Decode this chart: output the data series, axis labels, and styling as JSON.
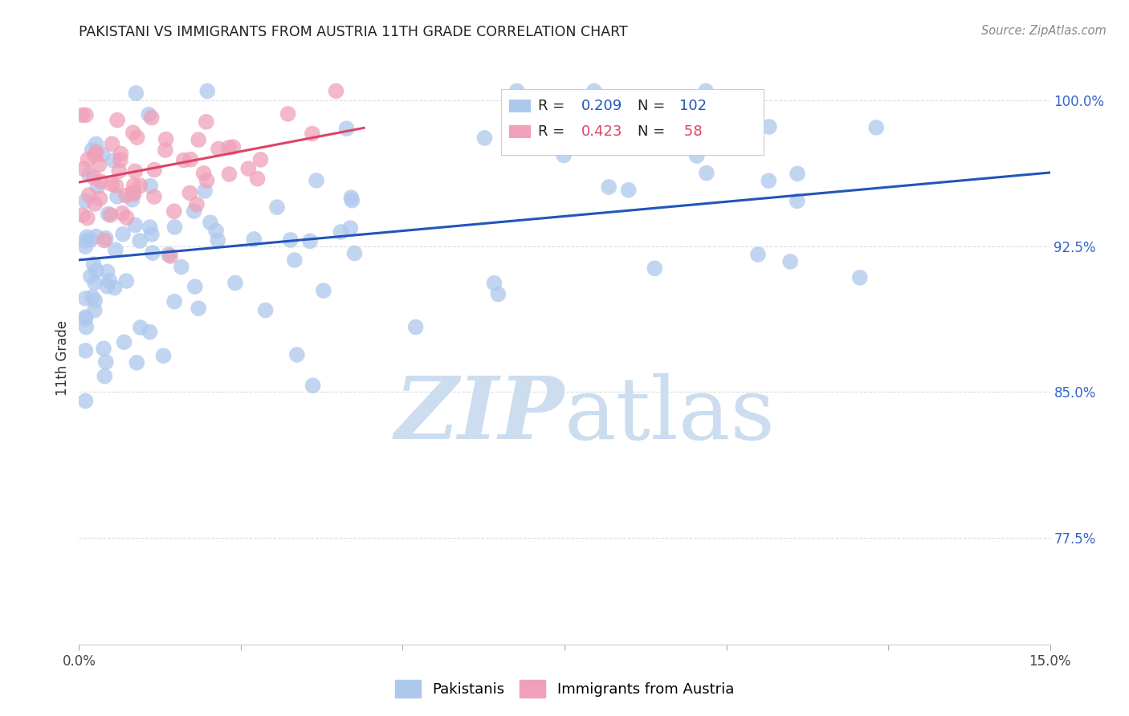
{
  "title": "PAKISTANI VS IMMIGRANTS FROM AUSTRIA 11TH GRADE CORRELATION CHART",
  "source": "Source: ZipAtlas.com",
  "ylabel": "11th Grade",
  "yaxis_labels": [
    "100.0%",
    "92.5%",
    "85.0%",
    "77.5%"
  ],
  "yaxis_values": [
    1.0,
    0.925,
    0.85,
    0.775
  ],
  "xaxis_range": [
    0.0,
    0.15
  ],
  "yaxis_range": [
    0.72,
    1.015
  ],
  "legend_blue_r": "0.209",
  "legend_blue_n": "102",
  "legend_pink_r": "0.423",
  "legend_pink_n": " 58",
  "blue_color": "#adc8ed",
  "pink_color": "#f0a0b8",
  "line_blue": "#2255bb",
  "line_pink": "#dd4466",
  "blue_line_x0": 0.0,
  "blue_line_x1": 0.15,
  "blue_line_y0": 0.918,
  "blue_line_y1": 0.963,
  "pink_line_x0": 0.0,
  "pink_line_x1": 0.044,
  "pink_line_y0": 0.958,
  "pink_line_y1": 0.986,
  "watermark_zip": "ZIP",
  "watermark_atlas": "atlas",
  "watermark_color": "#ccddf0",
  "background_color": "#ffffff",
  "grid_color": "#dddddd"
}
